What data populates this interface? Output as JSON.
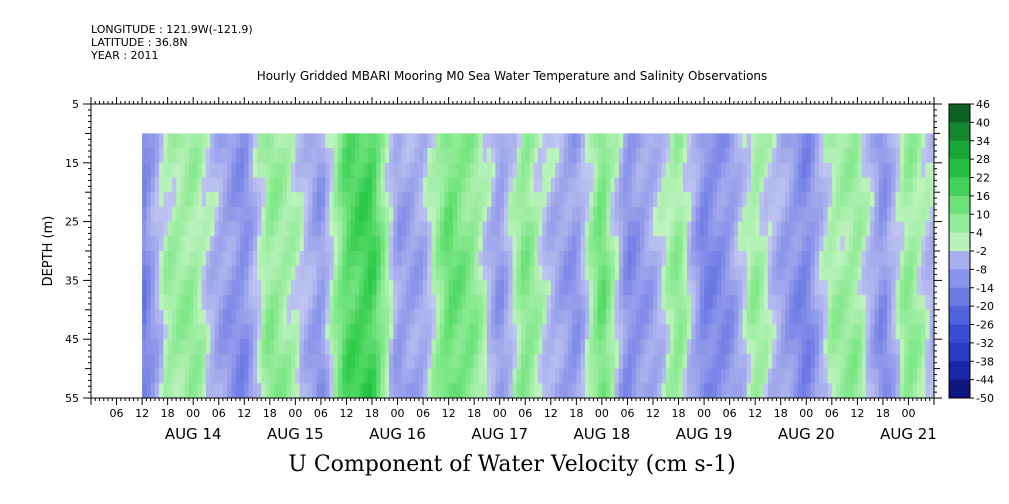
{
  "meta": {
    "longitude": "LONGITUDE : 121.9W(-121.9)",
    "latitude": "LATITUDE : 36.8N",
    "year": "YEAR : 2011"
  },
  "chart_data": {
    "type": "heatmap",
    "title": "Hourly Gridded MBARI Mooring M0 Sea Water Temperature and Salinity Observations",
    "xlabel": "U Component of Water Velocity (cm s-1)",
    "ylabel": "DEPTH (m)",
    "y_axis": {
      "range": [
        5,
        55
      ],
      "inverted": true,
      "ticks": [
        5,
        15,
        25,
        35,
        45,
        55
      ]
    },
    "x_axis": {
      "start": "2011-08-13 00:00",
      "end": "2011-08-21 06:00",
      "hour_tick_labels": [
        "06",
        "12",
        "18",
        "00",
        "06",
        "12",
        "18",
        "00",
        "06",
        "12",
        "18",
        "00",
        "06",
        "12",
        "18",
        "00",
        "06",
        "12",
        "18",
        "00",
        "06",
        "12",
        "18",
        "00",
        "06",
        "12",
        "18",
        "00",
        "06",
        "12",
        "18",
        "00"
      ],
      "day_labels": [
        "AUG 14",
        "AUG 15",
        "AUG 16",
        "AUG 17",
        "AUG 18",
        "AUG 19",
        "AUG 20",
        "AUG 21"
      ]
    },
    "data_extent": {
      "start": "2011-08-13 12:00",
      "end": "2011-08-21 06:00",
      "depth_range": [
        10,
        55
      ]
    },
    "colorbar": {
      "min": -50,
      "max": 46,
      "tick_labels": [
        "46",
        "40",
        "34",
        "28",
        "22",
        "16",
        "10",
        "4",
        "-2",
        "-8",
        "-14",
        "-20",
        "-26",
        "-32",
        "-38",
        "-44",
        "-50"
      ]
    },
    "profile_pattern": {
      "description": "time-ordered dominant U velocity bands (cm s-1)",
      "times": [
        "2011-08-13 12:00",
        "2011-08-13 18:00",
        "2011-08-14 00:00",
        "2011-08-14 06:00",
        "2011-08-14 12:00",
        "2011-08-14 18:00",
        "2011-08-15 00:00",
        "2011-08-15 06:00",
        "2011-08-15 12:00",
        "2011-08-15 18:00",
        "2011-08-16 00:00",
        "2011-08-16 06:00",
        "2011-08-16 12:00",
        "2011-08-16 18:00",
        "2011-08-17 00:00",
        "2011-08-17 06:00",
        "2011-08-17 12:00",
        "2011-08-17 18:00",
        "2011-08-18 00:00",
        "2011-08-18 06:00",
        "2011-08-18 12:00",
        "2011-08-18 18:00",
        "2011-08-19 00:00",
        "2011-08-19 06:00",
        "2011-08-19 12:00",
        "2011-08-19 18:00",
        "2011-08-20 00:00",
        "2011-08-20 06:00",
        "2011-08-20 12:00",
        "2011-08-20 18:00",
        "2011-08-21 00:00",
        "2011-08-21 06:00"
      ],
      "values": [
        -16,
        4,
        6,
        -6,
        -12,
        8,
        2,
        -10,
        16,
        20,
        -8,
        -6,
        14,
        8,
        -10,
        10,
        -4,
        -10,
        14,
        -12,
        -6,
        8,
        -14,
        -10,
        6,
        -6,
        -14,
        4,
        6,
        -12,
        8,
        -4
      ]
    }
  }
}
